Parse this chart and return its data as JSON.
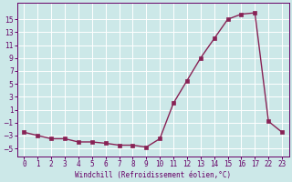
{
  "x_data": [
    0,
    1,
    2,
    3,
    4,
    5,
    6,
    7,
    8,
    9,
    10,
    11,
    12,
    13,
    14,
    15,
    16,
    17,
    18,
    19
  ],
  "y_data": [
    -2.5,
    -3.0,
    -3.5,
    -3.5,
    -4.0,
    -4.0,
    -4.2,
    -4.5,
    -4.5,
    -4.8,
    -3.5,
    2.0,
    5.5,
    9.0,
    12.0,
    15.0,
    15.8,
    16.0,
    -0.8,
    -2.5
  ],
  "xtick_positions": [
    0,
    1,
    2,
    3,
    4,
    5,
    6,
    7,
    8,
    9,
    10,
    11,
    12,
    13,
    14,
    15,
    16,
    17,
    18,
    19
  ],
  "xtick_labels": [
    "0",
    "1",
    "2",
    "3",
    "4",
    "5",
    "6",
    "7",
    "8",
    "9",
    "10",
    "11",
    "12",
    "13",
    "14",
    "15",
    "16",
    "17",
    "22",
    "23"
  ],
  "yticks": [
    -5,
    -3,
    -1,
    1,
    3,
    5,
    7,
    9,
    11,
    13,
    15
  ],
  "ylim": [
    -6.2,
    17.5
  ],
  "xlim": [
    -0.5,
    19.5
  ],
  "line_color": "#882255",
  "bg_color": "#cce8e8",
  "grid_color": "#ffffff",
  "xlabel": "Windchill (Refroidissement éolien,°C)",
  "xlabel_color": "#660066",
  "tick_color": "#660066",
  "tick_fontsize": 5.5,
  "xlabel_fontsize": 5.5,
  "linewidth": 1.0,
  "markersize": 2.5
}
